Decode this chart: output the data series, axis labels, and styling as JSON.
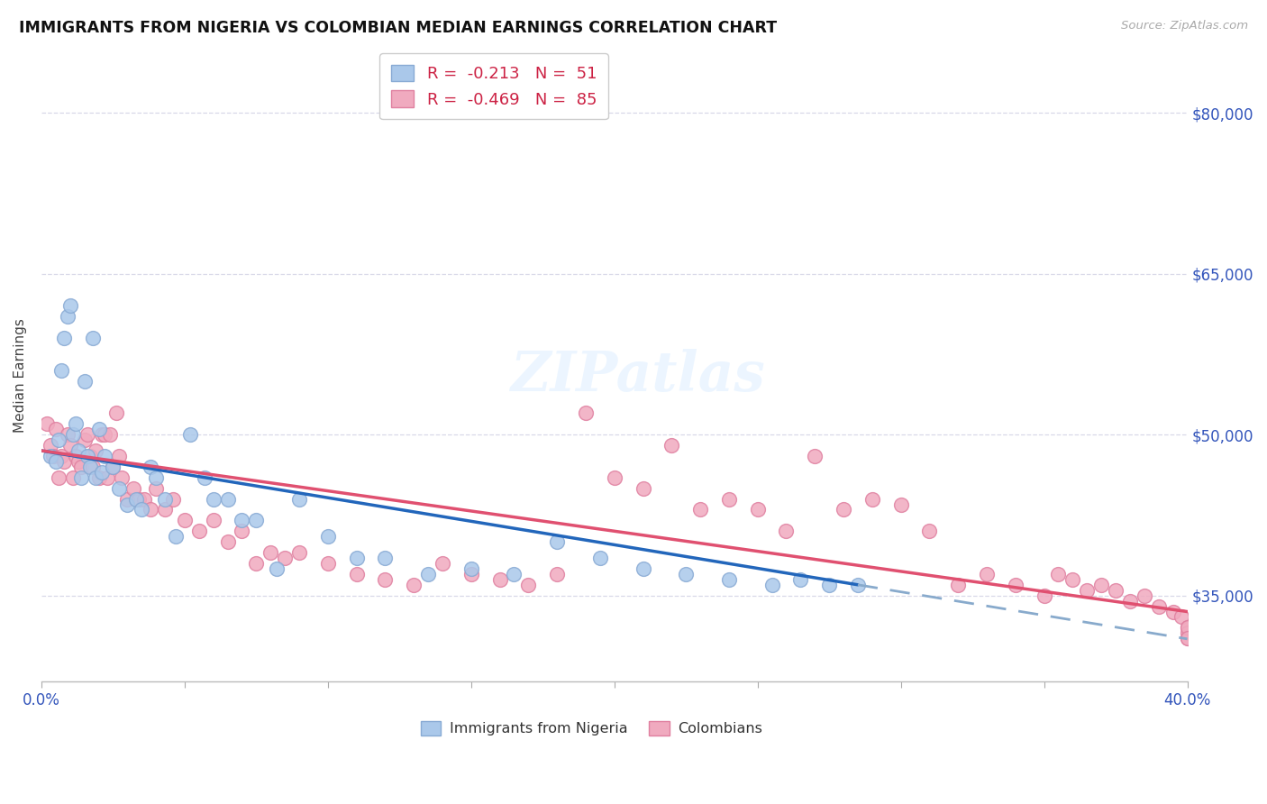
{
  "title": "IMMIGRANTS FROM NIGERIA VS COLOMBIAN MEDIAN EARNINGS CORRELATION CHART",
  "source": "Source: ZipAtlas.com",
  "ylabel": "Median Earnings",
  "xlim": [
    0.0,
    0.4
  ],
  "ylim": [
    27000,
    84000
  ],
  "yticks": [
    35000,
    50000,
    65000,
    80000
  ],
  "ytick_labels": [
    "$35,000",
    "$50,000",
    "$65,000",
    "$80,000"
  ],
  "xticks": [
    0.0,
    0.05,
    0.1,
    0.15,
    0.2,
    0.25,
    0.3,
    0.35,
    0.4
  ],
  "background_color": "#ffffff",
  "grid_color": "#d8d8e8",
  "nigeria_fill": "#aac8ea",
  "nigeria_edge": "#88aad4",
  "colombia_fill": "#f0aabf",
  "colombia_edge": "#e080a0",
  "nigeria_line_color": "#2266bb",
  "colombia_line_color": "#e05070",
  "nigeria_dash_color": "#88aacc",
  "legend_label1": "R =  -0.213   N =  51",
  "legend_label2": "R =  -0.469   N =  85",
  "legend_bottom_label1": "Immigrants from Nigeria",
  "legend_bottom_label2": "Colombians",
  "nigeria_x": [
    0.003,
    0.005,
    0.006,
    0.007,
    0.008,
    0.009,
    0.01,
    0.011,
    0.012,
    0.013,
    0.014,
    0.015,
    0.016,
    0.017,
    0.018,
    0.019,
    0.02,
    0.021,
    0.022,
    0.025,
    0.027,
    0.03,
    0.033,
    0.035,
    0.038,
    0.04,
    0.043,
    0.047,
    0.052,
    0.057,
    0.06,
    0.065,
    0.07,
    0.075,
    0.082,
    0.09,
    0.1,
    0.11,
    0.12,
    0.135,
    0.15,
    0.165,
    0.18,
    0.195,
    0.21,
    0.225,
    0.24,
    0.255,
    0.265,
    0.275,
    0.285
  ],
  "nigeria_y": [
    48000,
    47500,
    49500,
    56000,
    59000,
    61000,
    62000,
    50000,
    51000,
    48500,
    46000,
    55000,
    48000,
    47000,
    59000,
    46000,
    50500,
    46500,
    48000,
    47000,
    45000,
    43500,
    44000,
    43000,
    47000,
    46000,
    44000,
    40500,
    50000,
    46000,
    44000,
    44000,
    42000,
    42000,
    37500,
    44000,
    40500,
    38500,
    38500,
    37000,
    37500,
    37000,
    40000,
    38500,
    37500,
    37000,
    36500,
    36000,
    36500,
    36000,
    36000
  ],
  "colombia_x": [
    0.002,
    0.003,
    0.004,
    0.005,
    0.006,
    0.007,
    0.008,
    0.009,
    0.01,
    0.011,
    0.012,
    0.013,
    0.014,
    0.015,
    0.016,
    0.017,
    0.018,
    0.019,
    0.02,
    0.021,
    0.022,
    0.023,
    0.024,
    0.025,
    0.026,
    0.027,
    0.028,
    0.03,
    0.032,
    0.034,
    0.036,
    0.038,
    0.04,
    0.043,
    0.046,
    0.05,
    0.055,
    0.06,
    0.065,
    0.07,
    0.075,
    0.08,
    0.085,
    0.09,
    0.1,
    0.11,
    0.12,
    0.13,
    0.14,
    0.15,
    0.16,
    0.17,
    0.18,
    0.19,
    0.2,
    0.21,
    0.22,
    0.23,
    0.24,
    0.25,
    0.26,
    0.27,
    0.28,
    0.29,
    0.3,
    0.31,
    0.32,
    0.33,
    0.34,
    0.35,
    0.355,
    0.36,
    0.365,
    0.37,
    0.375,
    0.38,
    0.385,
    0.39,
    0.395,
    0.398,
    0.4,
    0.4,
    0.4,
    0.4,
    0.4
  ],
  "colombia_y": [
    51000,
    49000,
    48000,
    50500,
    46000,
    48000,
    47500,
    50000,
    49000,
    46000,
    48000,
    47500,
    47000,
    49500,
    50000,
    48000,
    47000,
    48500,
    46000,
    50000,
    50000,
    46000,
    50000,
    47000,
    52000,
    48000,
    46000,
    44000,
    45000,
    44000,
    44000,
    43000,
    45000,
    43000,
    44000,
    42000,
    41000,
    42000,
    40000,
    41000,
    38000,
    39000,
    38500,
    39000,
    38000,
    37000,
    36500,
    36000,
    38000,
    37000,
    36500,
    36000,
    37000,
    52000,
    46000,
    45000,
    49000,
    43000,
    44000,
    43000,
    41000,
    48000,
    43000,
    44000,
    43500,
    41000,
    36000,
    37000,
    36000,
    35000,
    37000,
    36500,
    35500,
    36000,
    35500,
    34500,
    35000,
    34000,
    33500,
    33000,
    32000,
    31500,
    31000,
    32000,
    31000
  ]
}
